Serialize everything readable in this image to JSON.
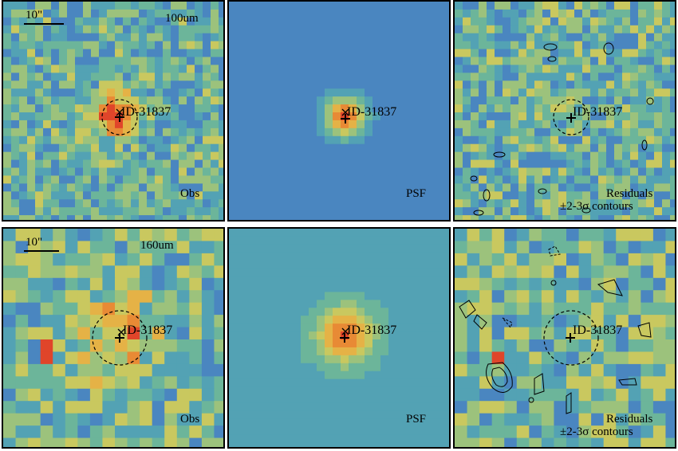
{
  "rows": [
    {
      "band": "100um",
      "panels": {
        "obs": {
          "label": "Obs"
        },
        "psf": {
          "label": "PSF"
        },
        "res": {
          "label1": "Residuals",
          "label2": "±2-3σ contours"
        }
      }
    },
    {
      "band": "160um",
      "panels": {
        "obs": {
          "label": "Obs"
        },
        "psf": {
          "label": "PSF"
        },
        "res": {
          "label1": "Residuals",
          "label2": "±2-3σ contours"
        }
      }
    }
  ],
  "scalebar": "10\"",
  "source_id": "ID-31837",
  "colormap": [
    "#3b1f8f",
    "#3e4fa8",
    "#4a86c0",
    "#53a2b4",
    "#6cb59a",
    "#9cc27c",
    "#c9c85f",
    "#e5b246",
    "#e88a35",
    "#e0452a"
  ]
}
